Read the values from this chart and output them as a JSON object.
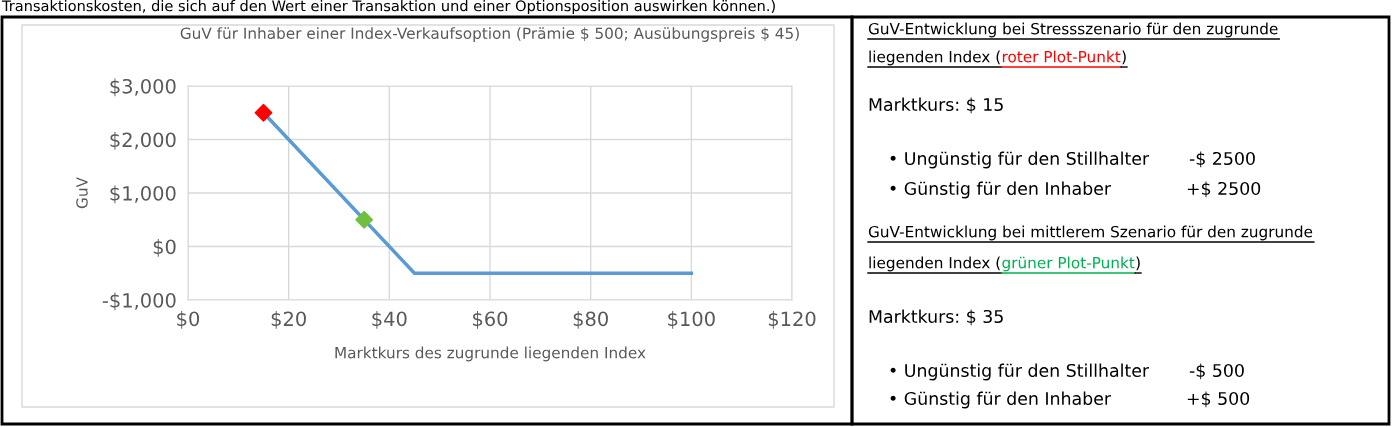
{
  "chart_data": [
    {
      "type": "line",
      "title": "GuV für Inhaber einer Index-Verkaufsoption (Prämie $ 500; Ausübungspreis $ 45)",
      "xlabel": "Marktkurs des zugrunde liegenden Index",
      "ylabel": "GuV",
      "xlim": [
        0,
        120
      ],
      "xticks": [
        {
          "value": 0,
          "label": "$0"
        },
        {
          "value": 20,
          "label": "$20"
        },
        {
          "value": 40,
          "label": "$40"
        },
        {
          "value": 60,
          "label": "$60"
        },
        {
          "value": 80,
          "label": "$80"
        },
        {
          "value": 100,
          "label": "$100"
        },
        {
          "value": 120,
          "label": "$120"
        }
      ],
      "ylim": [
        -1000,
        3000
      ],
      "yticks": [
        {
          "value": -1000,
          "label": "-$1,000"
        },
        {
          "value": 0,
          "label": "$0"
        },
        {
          "value": 1000,
          "label": "$1,000"
        },
        {
          "value": 2000,
          "label": "$2,000"
        },
        {
          "value": 3000,
          "label": "$3,000"
        }
      ],
      "grid": true,
      "series": [
        {
          "type": "line",
          "color": "#5b9bd5",
          "x": [
            15,
            45,
            100
          ],
          "values": [
            2500,
            -500,
            -500
          ],
          "marker": "none",
          "line_style": "solid"
        },
        {
          "type": "scatter",
          "color": "#ff0000",
          "x": [
            15
          ],
          "values": [
            2500
          ],
          "marker": "diamond"
        },
        {
          "type": "scatter",
          "color": "#70c040",
          "x": [
            35
          ],
          "values": [
            500
          ],
          "marker": "diamond"
        }
      ],
      "annotations": [
        "Transaktionskosten, die sich auf den Wert einer Transaktion und einer Optionsposition auswirken können.)"
      ]
    },
    {
      "type": "other",
      "annotations": [
        "GuV-Entwicklung bei Stressszenario für den zugrunde",
        "liegenden Index (",
        "roter Plot-Punkt",
        ")",
        "Marktkurs: $ 15",
        "• Ungünstig für den Stillhalter",
        "-$ 2500",
        "• Günstig für den Inhaber",
        "+$ 2500",
        "GuV-Entwicklung bei mittlerem Szenario für den zugrunde",
        "liegenden Index (",
        "grüner Plot-Punkt",
        ")",
        "Marktkurs: $ 35",
        "• Ungünstig für den Stillhalter",
        "-$ 500",
        "• Günstig für den Inhaber",
        "+$ 500"
      ],
      "colors": [
        "#000000",
        "#000000",
        "#ff0000",
        "#000000",
        "#000000",
        "#000000",
        "#000000",
        "#000000",
        "#000000",
        "#000000",
        "#000000",
        "#00b050",
        "#000000",
        "#000000",
        "#000000",
        "#000000",
        "#000000",
        "#000000"
      ]
    }
  ]
}
